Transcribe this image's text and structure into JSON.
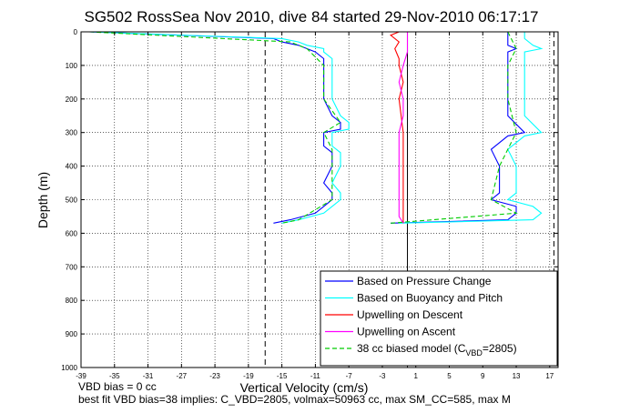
{
  "chart_data": {
    "type": "line",
    "title": "SG502 RossSea Nov 2010, dive 84 started 29-Nov-2010 06:17:17",
    "xlabel": "Vertical Velocity (cm/s)",
    "ylabel": "Depth (m)",
    "xlim": [
      -39,
      18
    ],
    "ylim": [
      0,
      1000
    ],
    "y_inverted": true,
    "xticks": [
      "-39",
      "-35",
      "-31",
      "-27",
      "-23",
      "-19",
      "-15",
      "-11",
      "-7",
      "-3",
      "1",
      "5",
      "9",
      "13",
      "17"
    ],
    "yticks": [
      "0",
      "100",
      "200",
      "300",
      "400",
      "500",
      "600",
      "700",
      "800",
      "900",
      "1000"
    ],
    "grid": true,
    "legend_position": "bottom-right",
    "series": [
      {
        "name": "Based on Pressure Change",
        "color": "#0000ff",
        "descent": {
          "depth": [
            0,
            20,
            30,
            40,
            50,
            60,
            80,
            100,
            150,
            200,
            250,
            270,
            290,
            300,
            340,
            360,
            400,
            450,
            480,
            500,
            520,
            540,
            560,
            570
          ],
          "velocity": [
            -38,
            -16,
            -15,
            -13,
            -12,
            -11,
            -10,
            -10,
            -10,
            -10,
            -9,
            -8,
            -8,
            -10,
            -10,
            -9,
            -9,
            -10,
            -9,
            -9,
            -10,
            -11,
            -14,
            -16
          ]
        },
        "ascent": {
          "depth": [
            570,
            560,
            540,
            520,
            500,
            480,
            450,
            400,
            350,
            310,
            300,
            250,
            200,
            150,
            100,
            80,
            60,
            50,
            40,
            20,
            0
          ],
          "velocity": [
            -2,
            12,
            13,
            13,
            10,
            11,
            11,
            11,
            10,
            12,
            14,
            12,
            12,
            12,
            12,
            12,
            12,
            13,
            12,
            12,
            12
          ]
        }
      },
      {
        "name": "Based on Buoyancy and Pitch",
        "color": "#00ffff",
        "descent": {
          "depth": [
            0,
            20,
            30,
            40,
            50,
            60,
            80,
            100,
            150,
            200,
            250,
            270,
            290,
            300,
            340,
            360,
            400,
            450,
            480,
            500,
            520,
            540,
            560,
            570
          ],
          "velocity": [
            -38,
            -15,
            -13,
            -12,
            -10,
            -10,
            -9,
            -9,
            -9,
            -9,
            -8,
            -7,
            -7,
            -9,
            -9,
            -8,
            -8,
            -9,
            -8,
            -8,
            -9,
            -10,
            -13,
            -15
          ]
        },
        "ascent": {
          "depth": [
            570,
            560,
            540,
            520,
            500,
            480,
            450,
            400,
            350,
            310,
            300,
            250,
            200,
            150,
            100,
            80,
            60,
            50,
            40,
            20,
            0
          ],
          "velocity": [
            -1,
            15,
            16,
            15,
            12,
            13,
            13,
            13,
            12,
            14,
            16,
            14,
            14,
            14,
            14,
            14,
            14,
            16,
            15,
            14,
            14
          ]
        }
      },
      {
        "name": "Upwelling on Descent",
        "color": "#ff0000",
        "depth": [
          0,
          10,
          30,
          50,
          80,
          100,
          150,
          200,
          300,
          400,
          500,
          550,
          570
        ],
        "velocity": [
          -1,
          -2,
          -1,
          -1.5,
          -1,
          -1,
          -0.5,
          -1,
          -0.5,
          -0.5,
          -0.5,
          -0.5,
          -0.5
        ]
      },
      {
        "name": "Upwelling on Ascent",
        "color": "#ff00ff",
        "depth": [
          0,
          30,
          60,
          100,
          150,
          200,
          250,
          300,
          350,
          400,
          450,
          500,
          550,
          570
        ],
        "velocity": [
          0,
          0,
          0,
          -0.5,
          -1,
          -0.5,
          -0.5,
          -1,
          -1,
          -1,
          -1,
          -1,
          -1,
          -0.5
        ]
      },
      {
        "name": "38 cc biased model (C",
        "name_sub": "VBD",
        "name_suffix": "=2805)",
        "color": "#00cc00",
        "dashed": true,
        "descent": {
          "depth": [
            0,
            30,
            50,
            100,
            200,
            270,
            300,
            350,
            400,
            500,
            560,
            570
          ],
          "velocity": [
            -38,
            -14,
            -12,
            -10,
            -10,
            -8,
            -10,
            -9,
            -9,
            -9,
            -13,
            -15
          ]
        },
        "ascent": {
          "depth": [
            570,
            540,
            500,
            400,
            300,
            200,
            100,
            50,
            0
          ],
          "velocity": [
            -2,
            13,
            10,
            11,
            13,
            12,
            12,
            13,
            12
          ]
        }
      }
    ],
    "reference_lines": {
      "dashed_vertical": [
        -17,
        17.5
      ],
      "solid_vertical": [
        0
      ]
    },
    "notes": [
      "VBD bias = 0 cc",
      "best fit VBD bias=38 implies: C_VBD=2805, volmax=50963 cc, max SM_CC=585, max M"
    ]
  }
}
